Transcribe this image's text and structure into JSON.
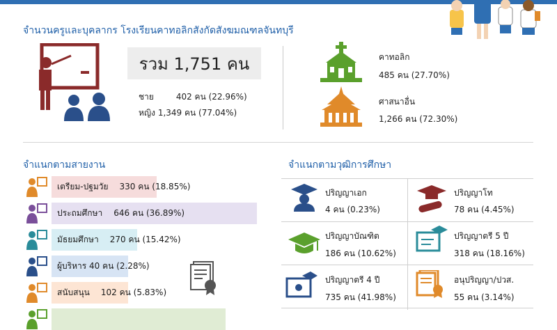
{
  "header": {
    "title": "จำนวนครูและบุคลากร โรงเรียนคาทอลิกสังกัดสังฆมณฑลจันทบุรี"
  },
  "summary": {
    "total": "รวม 1,751 คน",
    "male_label": "ชาย",
    "male_value": "402 คน (22.96%)",
    "female_label": "หญิง",
    "female_value": "1,349 คน (77.04%)"
  },
  "religion": [
    {
      "name": "คาทอลิก",
      "value": "485 คน (27.70%)"
    },
    {
      "name": "ศาสนาอื่น",
      "value": "1,266 คน (72.30%)"
    }
  ],
  "work_section": {
    "title": "จำแนกตามสายงาน",
    "items": [
      {
        "label": "เตรียม-ปฐมวัย",
        "value": "330 คน (18.85%)",
        "share": 18.85,
        "color": "#f6dcdc",
        "icon": "preschool-teacher-icon"
      },
      {
        "label": "ประถมศึกษา",
        "value": "646 คน (36.89%)",
        "share": 36.89,
        "color": "#e6e0f1",
        "icon": "primary-teacher-icon"
      },
      {
        "label": "มัธยมศึกษา",
        "value": "270 คน (15.42%)",
        "share": 15.42,
        "color": "#d7eef4",
        "icon": "secondary-teacher-icon"
      },
      {
        "label": "ผู้บริหาร 40 คน (2.28%)",
        "value": "",
        "share": 2.28,
        "color": "#d7e4f4",
        "icon": "executive-icon"
      },
      {
        "label": "สนับสนุน",
        "value": "102 คน (5.83%)",
        "share": 5.83,
        "color": "#fde5d4",
        "icon": "support-staff-icon"
      },
      {
        "label": "",
        "value": "",
        "share": 0,
        "color": "#e0ecd4",
        "icon": "staff-icon"
      }
    ]
  },
  "edu_section": {
    "title": "จำแนกตามวุฒิการศึกษา",
    "items": [
      {
        "name": "ปริญญาเอก",
        "value": "4 คน (0.23%)",
        "icon": "doctorate-icon"
      },
      {
        "name": "ปริญญาโท",
        "value": "78 คน (4.45%)",
        "icon": "masters-icon"
      },
      {
        "name": "ปริญญาบัณฑิต",
        "value": "186 คน (10.62%)",
        "icon": "graduate-cap-icon"
      },
      {
        "name": "ปริญญาตรี 5 ปี",
        "value": "318 คน (18.16%)",
        "icon": "bachelor-5yr-icon"
      },
      {
        "name": "ปริญญาตรี 4 ปี",
        "value": "735 คน (41.98%)",
        "icon": "bachelor-4yr-icon"
      },
      {
        "name": "อนุปริญญา/ปวส.",
        "value": "55 คน (3.14%)",
        "icon": "diploma-certificate-icon"
      }
    ]
  },
  "colors": {
    "accent": "#1f5fa8",
    "topbar": "#2f6fb3",
    "teal_icon": "#2a8c9a",
    "green_icon": "#5aa02c",
    "orange_icon": "#e08a2a"
  }
}
